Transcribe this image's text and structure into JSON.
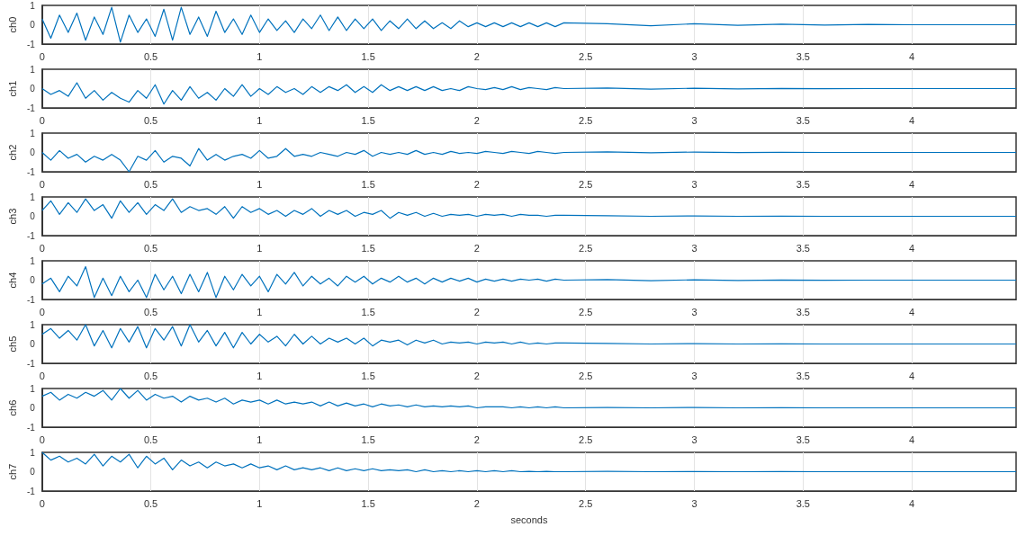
{
  "chart_data": [
    {
      "type": "line",
      "ylabel": "ch0",
      "xlim": [
        0,
        4.48
      ],
      "xticks": [
        0,
        0.5,
        1,
        1.5,
        2,
        2.5,
        3,
        3.5,
        4
      ],
      "ylim": [
        -1,
        1
      ],
      "yticks": [
        -1,
        0,
        1
      ],
      "grid": "x",
      "marker": "none",
      "x": [
        0,
        0.04,
        0.08,
        0.12,
        0.16,
        0.2,
        0.24,
        0.28,
        0.32,
        0.36,
        0.4,
        0.44,
        0.48,
        0.52,
        0.56,
        0.6,
        0.64,
        0.68,
        0.72,
        0.76,
        0.8,
        0.84,
        0.88,
        0.92,
        0.96,
        1,
        1.04,
        1.08,
        1.12,
        1.16,
        1.2,
        1.24,
        1.28,
        1.32,
        1.36,
        1.4,
        1.44,
        1.48,
        1.52,
        1.56,
        1.6,
        1.64,
        1.68,
        1.72,
        1.76,
        1.8,
        1.84,
        1.88,
        1.92,
        1.96,
        2,
        2.04,
        2.08,
        2.12,
        2.16,
        2.2,
        2.24,
        2.28,
        2.32,
        2.36,
        2.4,
        2.6,
        2.8,
        3,
        3.2,
        3.4,
        3.6,
        3.8,
        4,
        4.2,
        4.4,
        4.48
      ],
      "series": [
        {
          "color": "#0072bd",
          "values": [
            0.3,
            -0.7,
            0.5,
            -0.4,
            0.6,
            -0.8,
            0.4,
            -0.5,
            0.9,
            -0.9,
            0.5,
            -0.4,
            0.3,
            -0.6,
            0.8,
            -0.8,
            0.9,
            -0.5,
            0.4,
            -0.6,
            0.7,
            -0.4,
            0.3,
            -0.5,
            0.5,
            -0.4,
            0.3,
            -0.3,
            0.2,
            -0.4,
            0.3,
            -0.2,
            0.5,
            -0.3,
            0.4,
            -0.3,
            0.3,
            -0.2,
            0.3,
            -0.3,
            0.2,
            -0.2,
            0.3,
            -0.2,
            0.2,
            -0.2,
            0.1,
            -0.2,
            0.2,
            -0.1,
            0.1,
            -0.1,
            0.1,
            -0.1,
            0.1,
            -0.1,
            0.1,
            -0.1,
            0.1,
            -0.1,
            0.1,
            0.05,
            -0.05,
            0.05,
            -0.03,
            0.03,
            -0.02,
            0.02,
            0,
            0,
            0,
            0
          ]
        }
      ]
    },
    {
      "type": "line",
      "ylabel": "ch1",
      "xlim": [
        0,
        4.48
      ],
      "xticks": [
        0,
        0.5,
        1,
        1.5,
        2,
        2.5,
        3,
        3.5,
        4
      ],
      "ylim": [
        -1,
        1
      ],
      "yticks": [
        -1,
        0,
        1
      ],
      "grid": "x",
      "marker": "none",
      "x": [
        0,
        0.04,
        0.08,
        0.12,
        0.16,
        0.2,
        0.24,
        0.28,
        0.32,
        0.36,
        0.4,
        0.44,
        0.48,
        0.52,
        0.56,
        0.6,
        0.64,
        0.68,
        0.72,
        0.76,
        0.8,
        0.84,
        0.88,
        0.92,
        0.96,
        1,
        1.04,
        1.08,
        1.12,
        1.16,
        1.2,
        1.24,
        1.28,
        1.32,
        1.36,
        1.4,
        1.44,
        1.48,
        1.52,
        1.56,
        1.6,
        1.64,
        1.68,
        1.72,
        1.76,
        1.8,
        1.84,
        1.88,
        1.92,
        1.96,
        2,
        2.04,
        2.08,
        2.12,
        2.16,
        2.2,
        2.24,
        2.28,
        2.32,
        2.36,
        2.4,
        2.6,
        2.8,
        3,
        3.2,
        3.4,
        3.6,
        3.8,
        4,
        4.2,
        4.4,
        4.48
      ],
      "series": [
        {
          "color": "#0072bd",
          "values": [
            0,
            -0.3,
            -0.1,
            -0.4,
            0.3,
            -0.5,
            -0.1,
            -0.6,
            -0.2,
            -0.5,
            -0.7,
            -0.1,
            -0.5,
            0.2,
            -0.8,
            -0.1,
            -0.6,
            0.1,
            -0.5,
            -0.2,
            -0.6,
            0,
            -0.4,
            0.2,
            -0.4,
            0,
            -0.3,
            0.1,
            -0.2,
            0,
            -0.3,
            0.1,
            -0.2,
            0.1,
            -0.1,
            0.2,
            -0.2,
            0.1,
            -0.2,
            0.2,
            -0.1,
            0.1,
            -0.1,
            0.1,
            -0.1,
            0.1,
            -0.1,
            0,
            -0.1,
            0.1,
            0,
            -0.05,
            0.05,
            -0.05,
            0.1,
            -0.05,
            0.05,
            0,
            -0.05,
            0.05,
            0,
            0.03,
            -0.03,
            0.02,
            -0.02,
            0.01,
            -0.01,
            0,
            0,
            0,
            0,
            0
          ]
        }
      ]
    },
    {
      "type": "line",
      "ylabel": "ch2",
      "xlim": [
        0,
        4.48
      ],
      "xticks": [
        0,
        0.5,
        1,
        1.5,
        2,
        2.5,
        3,
        3.5,
        4
      ],
      "ylim": [
        -1,
        1
      ],
      "yticks": [
        -1,
        0,
        1
      ],
      "grid": "x",
      "marker": "none",
      "x": [
        0,
        0.04,
        0.08,
        0.12,
        0.16,
        0.2,
        0.24,
        0.28,
        0.32,
        0.36,
        0.4,
        0.44,
        0.48,
        0.52,
        0.56,
        0.6,
        0.64,
        0.68,
        0.72,
        0.76,
        0.8,
        0.84,
        0.88,
        0.92,
        0.96,
        1,
        1.04,
        1.08,
        1.12,
        1.16,
        1.2,
        1.24,
        1.28,
        1.32,
        1.36,
        1.4,
        1.44,
        1.48,
        1.52,
        1.56,
        1.6,
        1.64,
        1.68,
        1.72,
        1.76,
        1.8,
        1.84,
        1.88,
        1.92,
        1.96,
        2,
        2.04,
        2.08,
        2.12,
        2.16,
        2.2,
        2.24,
        2.28,
        2.32,
        2.36,
        2.4,
        2.6,
        2.8,
        3,
        3.2,
        3.4,
        3.6,
        3.8,
        4,
        4.2,
        4.4,
        4.48
      ],
      "series": [
        {
          "color": "#0072bd",
          "values": [
            0,
            -0.4,
            0.1,
            -0.3,
            -0.1,
            -0.5,
            -0.2,
            -0.4,
            -0.1,
            -0.4,
            -1,
            -0.2,
            -0.4,
            0.1,
            -0.5,
            -0.2,
            -0.3,
            -0.7,
            0.2,
            -0.4,
            -0.1,
            -0.4,
            -0.2,
            -0.1,
            -0.3,
            0.1,
            -0.3,
            -0.2,
            0.2,
            -0.2,
            -0.1,
            -0.2,
            0,
            -0.1,
            -0.2,
            0,
            -0.1,
            0.1,
            -0.2,
            0,
            -0.1,
            0,
            -0.1,
            0.1,
            -0.1,
            0,
            -0.1,
            0.05,
            -0.05,
            0,
            -0.05,
            0.05,
            0,
            -0.05,
            0.05,
            0,
            -0.05,
            0.05,
            0,
            -0.05,
            0,
            0.03,
            -0.02,
            0.02,
            -0.01,
            0.01,
            0,
            0,
            0,
            0,
            0,
            0
          ]
        }
      ]
    },
    {
      "type": "line",
      "ylabel": "ch3",
      "xlim": [
        0,
        4.48
      ],
      "xticks": [
        0,
        0.5,
        1,
        1.5,
        2,
        2.5,
        3,
        3.5,
        4
      ],
      "ylim": [
        -1,
        1
      ],
      "yticks": [
        -1,
        0,
        1
      ],
      "grid": "x",
      "marker": "none",
      "x": [
        0,
        0.04,
        0.08,
        0.12,
        0.16,
        0.2,
        0.24,
        0.28,
        0.32,
        0.36,
        0.4,
        0.44,
        0.48,
        0.52,
        0.56,
        0.6,
        0.64,
        0.68,
        0.72,
        0.76,
        0.8,
        0.84,
        0.88,
        0.92,
        0.96,
        1,
        1.04,
        1.08,
        1.12,
        1.16,
        1.2,
        1.24,
        1.28,
        1.32,
        1.36,
        1.4,
        1.44,
        1.48,
        1.52,
        1.56,
        1.6,
        1.64,
        1.68,
        1.72,
        1.76,
        1.8,
        1.84,
        1.88,
        1.92,
        1.96,
        2,
        2.04,
        2.08,
        2.12,
        2.16,
        2.2,
        2.24,
        2.28,
        2.32,
        2.36,
        2.4,
        2.6,
        2.8,
        3,
        3.2,
        3.4,
        3.6,
        3.8,
        4,
        4.2,
        4.4,
        4.48
      ],
      "series": [
        {
          "color": "#0072bd",
          "values": [
            0.3,
            0.8,
            0.1,
            0.7,
            0.2,
            0.9,
            0.3,
            0.6,
            -0.1,
            0.8,
            0.2,
            0.7,
            0.1,
            0.6,
            0.3,
            0.9,
            0.2,
            0.5,
            0.3,
            0.4,
            0.1,
            0.5,
            -0.1,
            0.5,
            0.2,
            0.4,
            0.1,
            0.3,
            0,
            0.3,
            0.1,
            0.4,
            0,
            0.3,
            0.1,
            0.3,
            0,
            0.2,
            0.1,
            0.3,
            -0.1,
            0.2,
            0.05,
            0.2,
            0,
            0.15,
            0,
            0.1,
            0.05,
            0.1,
            0,
            0.1,
            0.05,
            0.1,
            0,
            0.1,
            0.05,
            0.05,
            0,
            0.05,
            0.05,
            0.03,
            0,
            0.02,
            0,
            0.01,
            0,
            0,
            0,
            0,
            0,
            0
          ]
        }
      ]
    },
    {
      "type": "line",
      "ylabel": "ch4",
      "xlim": [
        0,
        4.48
      ],
      "xticks": [
        0,
        0.5,
        1,
        1.5,
        2,
        2.5,
        3,
        3.5,
        4
      ],
      "ylim": [
        -1,
        1
      ],
      "yticks": [
        -1,
        0,
        1
      ],
      "grid": "x",
      "marker": "none",
      "x": [
        0,
        0.04,
        0.08,
        0.12,
        0.16,
        0.2,
        0.24,
        0.28,
        0.32,
        0.36,
        0.4,
        0.44,
        0.48,
        0.52,
        0.56,
        0.6,
        0.64,
        0.68,
        0.72,
        0.76,
        0.8,
        0.84,
        0.88,
        0.92,
        0.96,
        1,
        1.04,
        1.08,
        1.12,
        1.16,
        1.2,
        1.24,
        1.28,
        1.32,
        1.36,
        1.4,
        1.44,
        1.48,
        1.52,
        1.56,
        1.6,
        1.64,
        1.68,
        1.72,
        1.76,
        1.8,
        1.84,
        1.88,
        1.92,
        1.96,
        2,
        2.04,
        2.08,
        2.12,
        2.16,
        2.2,
        2.24,
        2.28,
        2.32,
        2.36,
        2.4,
        2.6,
        2.8,
        3,
        3.2,
        3.4,
        3.6,
        3.8,
        4,
        4.2,
        4.4,
        4.48
      ],
      "series": [
        {
          "color": "#0072bd",
          "values": [
            -0.2,
            0.1,
            -0.6,
            0.2,
            -0.3,
            0.7,
            -0.9,
            0.1,
            -0.8,
            0.2,
            -0.6,
            0,
            -0.9,
            0.3,
            -0.5,
            0.2,
            -0.7,
            0.3,
            -0.6,
            0.4,
            -0.9,
            0.2,
            -0.5,
            0.3,
            -0.3,
            0.2,
            -0.6,
            0.3,
            -0.2,
            0.4,
            -0.3,
            0.2,
            -0.2,
            0.1,
            -0.3,
            0.2,
            -0.1,
            0.2,
            -0.2,
            0.1,
            -0.1,
            0.2,
            -0.1,
            0.1,
            -0.2,
            0.1,
            -0.1,
            0.1,
            -0.05,
            0.1,
            -0.1,
            0.05,
            -0.05,
            0.05,
            -0.05,
            0.05,
            0,
            0.05,
            -0.05,
            0.05,
            0,
            0.03,
            -0.03,
            0.02,
            -0.02,
            0.01,
            -0.01,
            0,
            0,
            0,
            0,
            0
          ]
        }
      ]
    },
    {
      "type": "line",
      "ylabel": "ch5",
      "xlim": [
        0,
        4.48
      ],
      "xticks": [
        0,
        0.5,
        1,
        1.5,
        2,
        2.5,
        3,
        3.5,
        4
      ],
      "ylim": [
        -1,
        1
      ],
      "yticks": [
        -1,
        0,
        1
      ],
      "grid": "x",
      "marker": "none",
      "x": [
        0,
        0.04,
        0.08,
        0.12,
        0.16,
        0.2,
        0.24,
        0.28,
        0.32,
        0.36,
        0.4,
        0.44,
        0.48,
        0.52,
        0.56,
        0.6,
        0.64,
        0.68,
        0.72,
        0.76,
        0.8,
        0.84,
        0.88,
        0.92,
        0.96,
        1,
        1.04,
        1.08,
        1.12,
        1.16,
        1.2,
        1.24,
        1.28,
        1.32,
        1.36,
        1.4,
        1.44,
        1.48,
        1.52,
        1.56,
        1.6,
        1.64,
        1.68,
        1.72,
        1.76,
        1.8,
        1.84,
        1.88,
        1.92,
        1.96,
        2,
        2.04,
        2.08,
        2.12,
        2.16,
        2.2,
        2.24,
        2.28,
        2.32,
        2.36,
        2.4,
        2.6,
        2.8,
        3,
        3.2,
        3.4,
        3.6,
        3.8,
        4,
        4.2,
        4.4,
        4.48
      ],
      "series": [
        {
          "color": "#0072bd",
          "values": [
            0.5,
            0.8,
            0.3,
            0.7,
            0.2,
            1,
            -0.1,
            0.7,
            -0.2,
            0.8,
            0.1,
            0.9,
            -0.2,
            0.8,
            0.2,
            0.9,
            -0.1,
            1,
            0.1,
            0.7,
            -0.1,
            0.6,
            -0.2,
            0.6,
            0,
            0.5,
            0.1,
            0.4,
            -0.1,
            0.5,
            0,
            0.4,
            0,
            0.3,
            0.1,
            0.3,
            0,
            0.3,
            -0.1,
            0.2,
            0.1,
            0.2,
            -0.05,
            0.2,
            0.05,
            0.2,
            0,
            0.1,
            0.05,
            0.1,
            0,
            0.1,
            0.05,
            0.1,
            0,
            0.1,
            0,
            0.05,
            0,
            0.05,
            0.05,
            0.03,
            0,
            0.02,
            0,
            0.01,
            0,
            0,
            0,
            0,
            0,
            0
          ]
        }
      ]
    },
    {
      "type": "line",
      "ylabel": "ch6",
      "xlim": [
        0,
        4.48
      ],
      "xticks": [
        0,
        0.5,
        1,
        1.5,
        2,
        2.5,
        3,
        3.5,
        4
      ],
      "ylim": [
        -1,
        1
      ],
      "yticks": [
        -1,
        0,
        1
      ],
      "grid": "x",
      "marker": "none",
      "x": [
        0,
        0.04,
        0.08,
        0.12,
        0.16,
        0.2,
        0.24,
        0.28,
        0.32,
        0.36,
        0.4,
        0.44,
        0.48,
        0.52,
        0.56,
        0.6,
        0.64,
        0.68,
        0.72,
        0.76,
        0.8,
        0.84,
        0.88,
        0.92,
        0.96,
        1,
        1.04,
        1.08,
        1.12,
        1.16,
        1.2,
        1.24,
        1.28,
        1.32,
        1.36,
        1.4,
        1.44,
        1.48,
        1.52,
        1.56,
        1.6,
        1.64,
        1.68,
        1.72,
        1.76,
        1.8,
        1.84,
        1.88,
        1.92,
        1.96,
        2,
        2.04,
        2.08,
        2.12,
        2.16,
        2.2,
        2.24,
        2.28,
        2.32,
        2.36,
        2.4,
        2.6,
        2.8,
        3,
        3.2,
        3.4,
        3.6,
        3.8,
        4,
        4.2,
        4.4,
        4.48
      ],
      "series": [
        {
          "color": "#0072bd",
          "values": [
            0.6,
            0.8,
            0.4,
            0.7,
            0.5,
            0.8,
            0.6,
            0.9,
            0.4,
            1,
            0.5,
            0.9,
            0.4,
            0.7,
            0.5,
            0.6,
            0.3,
            0.6,
            0.4,
            0.5,
            0.3,
            0.5,
            0.2,
            0.4,
            0.3,
            0.4,
            0.2,
            0.4,
            0.2,
            0.3,
            0.2,
            0.3,
            0.1,
            0.3,
            0.1,
            0.25,
            0.1,
            0.2,
            0.05,
            0.2,
            0.1,
            0.15,
            0.05,
            0.15,
            0.05,
            0.1,
            0.05,
            0.1,
            0.05,
            0.1,
            0,
            0.05,
            0.05,
            0.05,
            0,
            0.05,
            0,
            0.05,
            0,
            0.05,
            0,
            0.02,
            0,
            0.02,
            0,
            0.01,
            0,
            0,
            0,
            0,
            0,
            0
          ]
        }
      ]
    },
    {
      "type": "line",
      "ylabel": "ch7",
      "xlabel": "seconds",
      "xlim": [
        0,
        4.48
      ],
      "xticks": [
        0,
        0.5,
        1,
        1.5,
        2,
        2.5,
        3,
        3.5,
        4
      ],
      "ylim": [
        -1,
        1
      ],
      "yticks": [
        -1,
        0,
        1
      ],
      "grid": "x",
      "marker": "none",
      "x": [
        0,
        0.04,
        0.08,
        0.12,
        0.16,
        0.2,
        0.24,
        0.28,
        0.32,
        0.36,
        0.4,
        0.44,
        0.48,
        0.52,
        0.56,
        0.6,
        0.64,
        0.68,
        0.72,
        0.76,
        0.8,
        0.84,
        0.88,
        0.92,
        0.96,
        1,
        1.04,
        1.08,
        1.12,
        1.16,
        1.2,
        1.24,
        1.28,
        1.32,
        1.36,
        1.4,
        1.44,
        1.48,
        1.52,
        1.56,
        1.6,
        1.64,
        1.68,
        1.72,
        1.76,
        1.8,
        1.84,
        1.88,
        1.92,
        1.96,
        2,
        2.04,
        2.08,
        2.12,
        2.16,
        2.2,
        2.24,
        2.28,
        2.32,
        2.36,
        2.4,
        2.6,
        2.8,
        3,
        3.2,
        3.4,
        3.6,
        3.8,
        4,
        4.2,
        4.4,
        4.48
      ],
      "series": [
        {
          "color": "#0072bd",
          "values": [
            1,
            0.6,
            0.8,
            0.5,
            0.7,
            0.4,
            0.9,
            0.3,
            0.8,
            0.5,
            0.9,
            0.2,
            0.8,
            0.4,
            0.7,
            0.1,
            0.6,
            0.3,
            0.5,
            0.2,
            0.5,
            0.3,
            0.4,
            0.2,
            0.4,
            0.2,
            0.3,
            0.1,
            0.3,
            0.1,
            0.2,
            0.1,
            0.2,
            0.05,
            0.2,
            0.05,
            0.15,
            0.05,
            0.15,
            0.05,
            0.1,
            0.05,
            0.1,
            0,
            0.1,
            0,
            0.05,
            0,
            0.05,
            0,
            0.05,
            0,
            0.05,
            0,
            0.05,
            0,
            0.02,
            0,
            0.02,
            0,
            0,
            0.02,
            0,
            0.01,
            0,
            0.01,
            0,
            0,
            0,
            0,
            0,
            0
          ]
        }
      ]
    }
  ]
}
